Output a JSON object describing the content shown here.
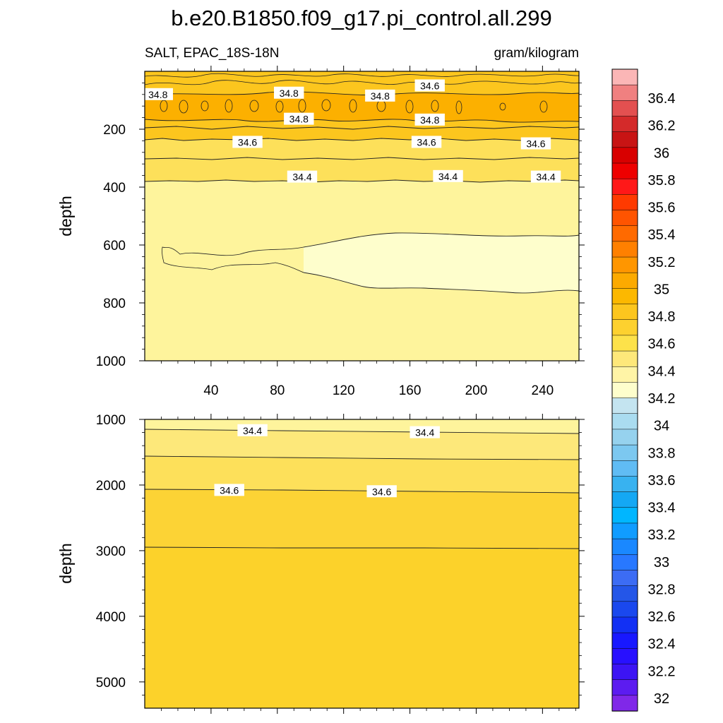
{
  "figure": {
    "title": "b.e20.B1850.f09_g17.pi_control.all.299",
    "left_subtitle": "SALT, EPAC_18S-18N",
    "right_subtitle": "gram/kilogram"
  },
  "chart_data": [
    {
      "type": "contour",
      "panel": "upper",
      "variable": "SALT",
      "region": "EPAC_18S-18N",
      "units": "gram/kilogram",
      "ylabel": "depth",
      "xlabel": "",
      "xlim": [
        0,
        262
      ],
      "ylim": [
        1000,
        0
      ],
      "x_ticks": [
        40,
        80,
        120,
        160,
        200,
        240
      ],
      "y_ticks": [
        200,
        400,
        600,
        800,
        1000
      ],
      "contour_fills": [
        {
          "level_range": [
            34.8,
            35.0
          ],
          "depth_range": [
            90,
            130
          ],
          "color": "#fcb000"
        },
        {
          "level_range": [
            34.6,
            34.8
          ],
          "depth_range": [
            0,
            250
          ],
          "color": "#fcc61e"
        },
        {
          "level_range": [
            34.4,
            34.6
          ],
          "depth_range": [
            250,
            380
          ],
          "color": "#fde05a"
        },
        {
          "level_range": [
            34.2,
            34.4
          ],
          "depth_range": [
            380,
            1000
          ],
          "color": "#fef49c"
        },
        {
          "level_range": [
            34.0,
            34.2
          ],
          "depth_range": [
            580,
            760
          ],
          "color": "#fefecc"
        }
      ],
      "contour_labels": [
        {
          "x": 8,
          "y": 80,
          "label": "34.8"
        },
        {
          "x": 87,
          "y": 75,
          "label": "34.8"
        },
        {
          "x": 142,
          "y": 85,
          "label": "34.8"
        },
        {
          "x": 93,
          "y": 165,
          "label": "34.8"
        },
        {
          "x": 172,
          "y": 50,
          "label": "34.6"
        },
        {
          "x": 172,
          "y": 168,
          "label": "34.8"
        },
        {
          "x": 62,
          "y": 245,
          "label": "34.6"
        },
        {
          "x": 170,
          "y": 245,
          "label": "34.6"
        },
        {
          "x": 236,
          "y": 250,
          "label": "34.6"
        },
        {
          "x": 95,
          "y": 365,
          "label": "34.4"
        },
        {
          "x": 183,
          "y": 363,
          "label": "34.4"
        },
        {
          "x": 242,
          "y": 365,
          "label": "34.4"
        }
      ]
    },
    {
      "type": "contour",
      "panel": "lower",
      "ylabel": "depth",
      "xlim": [
        0,
        262
      ],
      "ylim": [
        5400,
        1000
      ],
      "y_ticks": [
        1000,
        2000,
        3000,
        4000,
        5000
      ],
      "contour_fills": [
        {
          "level_range": [
            34.4,
            34.6
          ],
          "depth_range": [
            1000,
            1170
          ],
          "color": "#fef49c"
        },
        {
          "level_range": [
            34.4,
            34.6
          ],
          "depth_range": [
            1170,
            1580
          ],
          "color": "#fde87a"
        },
        {
          "level_range": [
            34.4,
            34.6
          ],
          "depth_range": [
            1580,
            2080
          ],
          "color": "#fde05a"
        },
        {
          "level_range": [
            34.6,
            34.8
          ],
          "depth_range": [
            2080,
            2950
          ],
          "color": "#fcd335"
        },
        {
          "level_range": [
            34.6,
            34.8
          ],
          "depth_range": [
            2950,
            5400
          ],
          "color": "#fcd22a"
        }
      ],
      "contour_labels": [
        {
          "x": 65,
          "y": 1170,
          "label": "34.4"
        },
        {
          "x": 169,
          "y": 1200,
          "label": "34.4"
        },
        {
          "x": 51,
          "y": 2080,
          "label": "34.6"
        },
        {
          "x": 143,
          "y": 2100,
          "label": "34.6"
        }
      ]
    },
    {
      "type": "colorbar",
      "labels": [
        "36.4",
        "36.2",
        "36",
        "35.8",
        "35.6",
        "35.4",
        "35.2",
        "35",
        "34.8",
        "34.6",
        "34.4",
        "34.2",
        "34",
        "33.8",
        "33.6",
        "33.4",
        "33.2",
        "33",
        "32.8",
        "32.6",
        "32.4",
        "32.2",
        "32"
      ],
      "colors": [
        "#fbb6b6",
        "#f08080",
        "#e35050",
        "#d42a2a",
        "#c81414",
        "#d80000",
        "#ee0000",
        "#ff1818",
        "#ff3a00",
        "#ff5400",
        "#ff6a00",
        "#ff8000",
        "#ff9600",
        "#fcaa00",
        "#fcb800",
        "#fcc61e",
        "#fdd12f",
        "#fde24a",
        "#fee87a",
        "#fff4a6",
        "#fefecc",
        "#c4e4f0",
        "#aadcf0",
        "#96d2ee",
        "#7cc8f0",
        "#60bcf4",
        "#38b2f0",
        "#14a8f4",
        "#00b6ff",
        "#109cff",
        "#1a88ff",
        "#2878ff",
        "#3c6cf4",
        "#2456e8",
        "#1a48ee",
        "#1230f4",
        "#1818ff",
        "#2810ff",
        "#3c14f4",
        "#5c1cf0",
        "#8028e8"
      ]
    }
  ]
}
